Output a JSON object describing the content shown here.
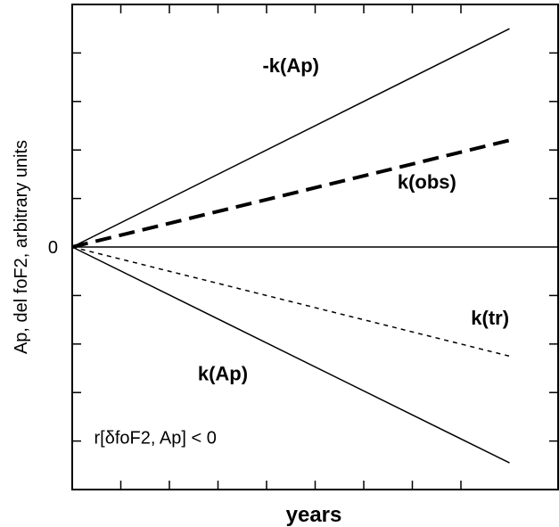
{
  "chart_data": {
    "type": "line",
    "title": "",
    "xlabel": "years",
    "ylabel": "Ap, del foF2, arbitrary units",
    "xlim": [
      0,
      9
    ],
    "ylim": [
      -5,
      5
    ],
    "x_ticks": 9,
    "y_tick_labels": [
      {
        "value": 0,
        "label": "0"
      }
    ],
    "series": [
      {
        "label": "-k(Ap)",
        "x": [
          0,
          9
        ],
        "y": [
          0,
          4.5
        ],
        "style": "solid",
        "width": 1.5,
        "label_at": [
          4.5,
          3.6
        ]
      },
      {
        "label": "k(obs)",
        "x": [
          0,
          9
        ],
        "y": [
          0,
          2.2
        ],
        "style": "dashed-thick",
        "width": 4,
        "label_at": [
          7.3,
          1.2
        ]
      },
      {
        "label": "k(tr)",
        "x": [
          0,
          9
        ],
        "y": [
          0,
          -2.25
        ],
        "style": "dashed-thin",
        "width": 1.5,
        "label_at": [
          8.6,
          -1.6
        ]
      },
      {
        "label": "k(Ap)",
        "x": [
          0,
          9
        ],
        "y": [
          0,
          -4.45
        ],
        "style": "solid",
        "width": 1.5,
        "label_at": [
          3.1,
          -2.75
        ]
      }
    ],
    "annotations": [
      {
        "text": "r[δfoF2, Ap] < 0",
        "at": [
          0.45,
          -4.05
        ]
      }
    ],
    "grid": false,
    "zero_line": true
  }
}
